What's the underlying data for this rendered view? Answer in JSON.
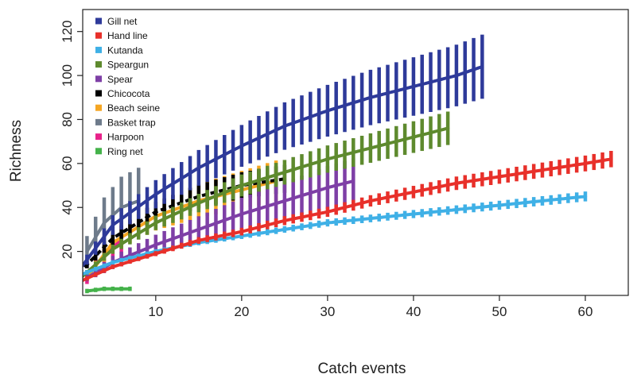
{
  "chart_data": {
    "type": "line",
    "xlabel": "Catch events",
    "ylabel": "Richness",
    "xlim": [
      1.5,
      65
    ],
    "ylim": [
      0,
      130
    ],
    "xticks": [
      10,
      20,
      30,
      40,
      50,
      60
    ],
    "yticks": [
      20,
      40,
      60,
      80,
      100,
      120
    ],
    "legend_position": "top-left",
    "grid": false,
    "series": [
      {
        "name": "Gill net",
        "color": "#2E3A9A",
        "ci_ratio": 0.14,
        "x": [
          1,
          5,
          10,
          15,
          20,
          25,
          30,
          35,
          40,
          45,
          48
        ],
        "y": [
          11,
          32,
          46,
          58,
          68,
          77,
          84,
          90,
          95,
          100,
          104
        ]
      },
      {
        "name": "Hand line",
        "color": "#E8302A",
        "ci_ratio": 0.06,
        "x": [
          1,
          5,
          10,
          15,
          20,
          25,
          30,
          35,
          40,
          45,
          50,
          55,
          60,
          63
        ],
        "y": [
          6,
          13,
          19,
          25,
          29,
          34,
          38,
          43,
          47,
          51,
          54,
          57,
          60,
          62
        ]
      },
      {
        "name": "Kutanda",
        "color": "#3FB0E6",
        "ci_ratio": 0.05,
        "x": [
          1,
          5,
          10,
          15,
          20,
          25,
          30,
          35,
          40,
          45,
          50,
          55,
          60
        ],
        "y": [
          9,
          15,
          20,
          24,
          27,
          30,
          33,
          35,
          37,
          39,
          41,
          43,
          45
        ]
      },
      {
        "name": "Speargun",
        "color": "#5E8A2E",
        "ci_ratio": 0.1,
        "x": [
          1,
          5,
          10,
          15,
          20,
          25,
          30,
          35,
          40,
          44
        ],
        "y": [
          7,
          21,
          33,
          42,
          50,
          56,
          62,
          67,
          72,
          76
        ]
      },
      {
        "name": "Spear",
        "color": "#7E3FA6",
        "ci_ratio": 0.2,
        "x": [
          2,
          5,
          10,
          15,
          20,
          25,
          30,
          33
        ],
        "y": [
          8,
          15,
          23,
          30,
          37,
          43,
          49,
          52
        ]
      },
      {
        "name": "Chicocota",
        "color": "#000000",
        "ci_ratio": 0.12,
        "x": [
          1,
          5,
          10,
          15,
          20,
          25
        ],
        "y": [
          10,
          26,
          38,
          45,
          50,
          53
        ]
      },
      {
        "name": "Beach seine",
        "color": "#F5A623",
        "ci_ratio": 0.18,
        "x": [
          2,
          5,
          10,
          15,
          20,
          24
        ],
        "y": [
          8,
          24,
          36,
          43,
          48,
          52
        ]
      },
      {
        "name": "Basket trap",
        "color": "#6E7B8B",
        "ci_ratio": 0.35,
        "x": [
          2,
          4,
          6,
          8
        ],
        "y": [
          20,
          33,
          40,
          43
        ]
      },
      {
        "name": "Harpoon",
        "color": "#E8238A",
        "ci_ratio": 0.35,
        "x": [
          2,
          3,
          4,
          5,
          6
        ],
        "y": [
          8,
          14,
          18,
          22,
          25
        ]
      },
      {
        "name": "Ring net",
        "color": "#44B24A",
        "ci_ratio": 0.15,
        "x": [
          2,
          4,
          7
        ],
        "y": [
          2,
          3,
          3
        ]
      }
    ]
  }
}
